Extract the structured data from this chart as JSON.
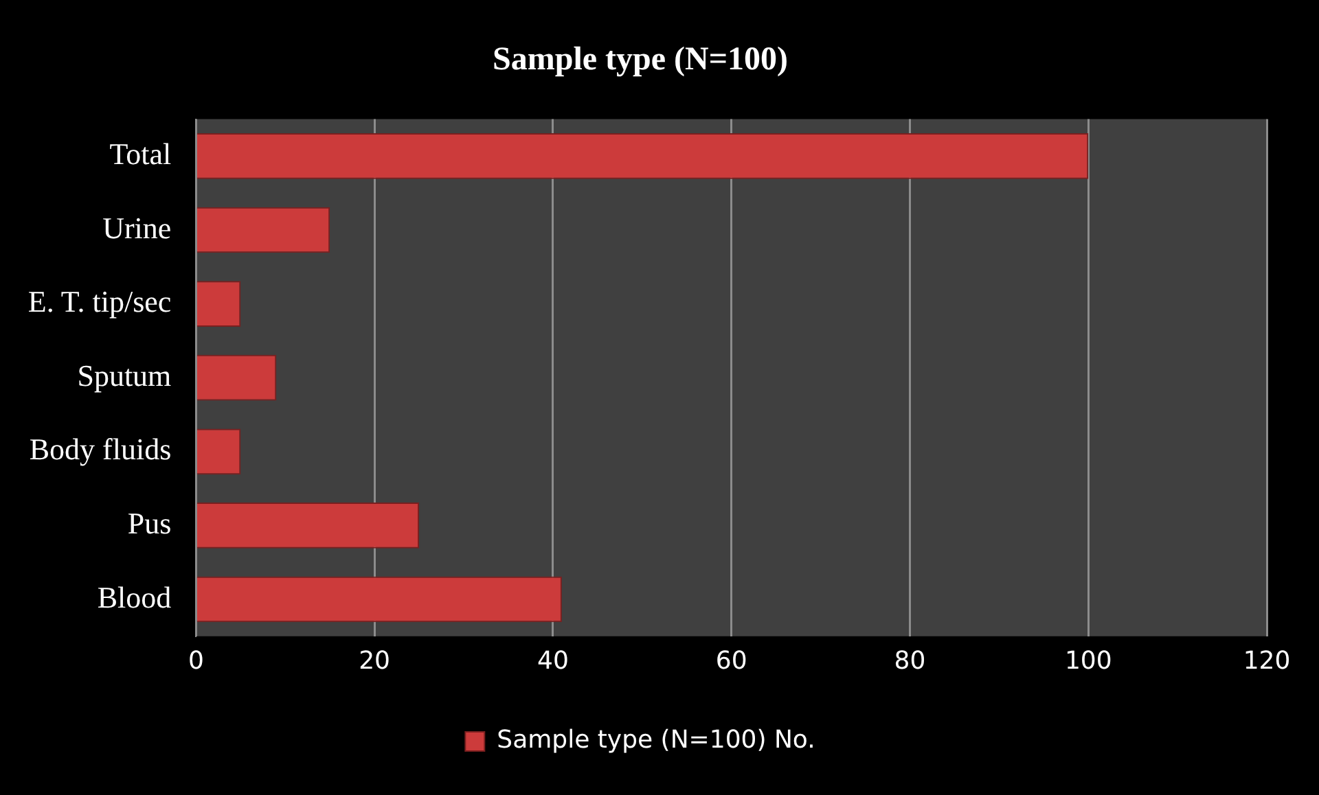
{
  "chart_data": {
    "type": "bar",
    "orientation": "horizontal",
    "title": "Sample type (N=100)",
    "categories": [
      "Total",
      "Urine",
      "E. T. tip/sec",
      "Sputum",
      "Body fluids",
      "Pus",
      "Blood"
    ],
    "series": [
      {
        "name": "Sample type (N=100) No.",
        "color": "#cc3b3b",
        "values": [
          100,
          15,
          5,
          9,
          5,
          25,
          41
        ]
      }
    ],
    "xlim": [
      0,
      120
    ],
    "xticks": [
      0,
      20,
      40,
      60,
      80,
      100,
      120
    ],
    "grid": "x",
    "legend": "bottom"
  }
}
